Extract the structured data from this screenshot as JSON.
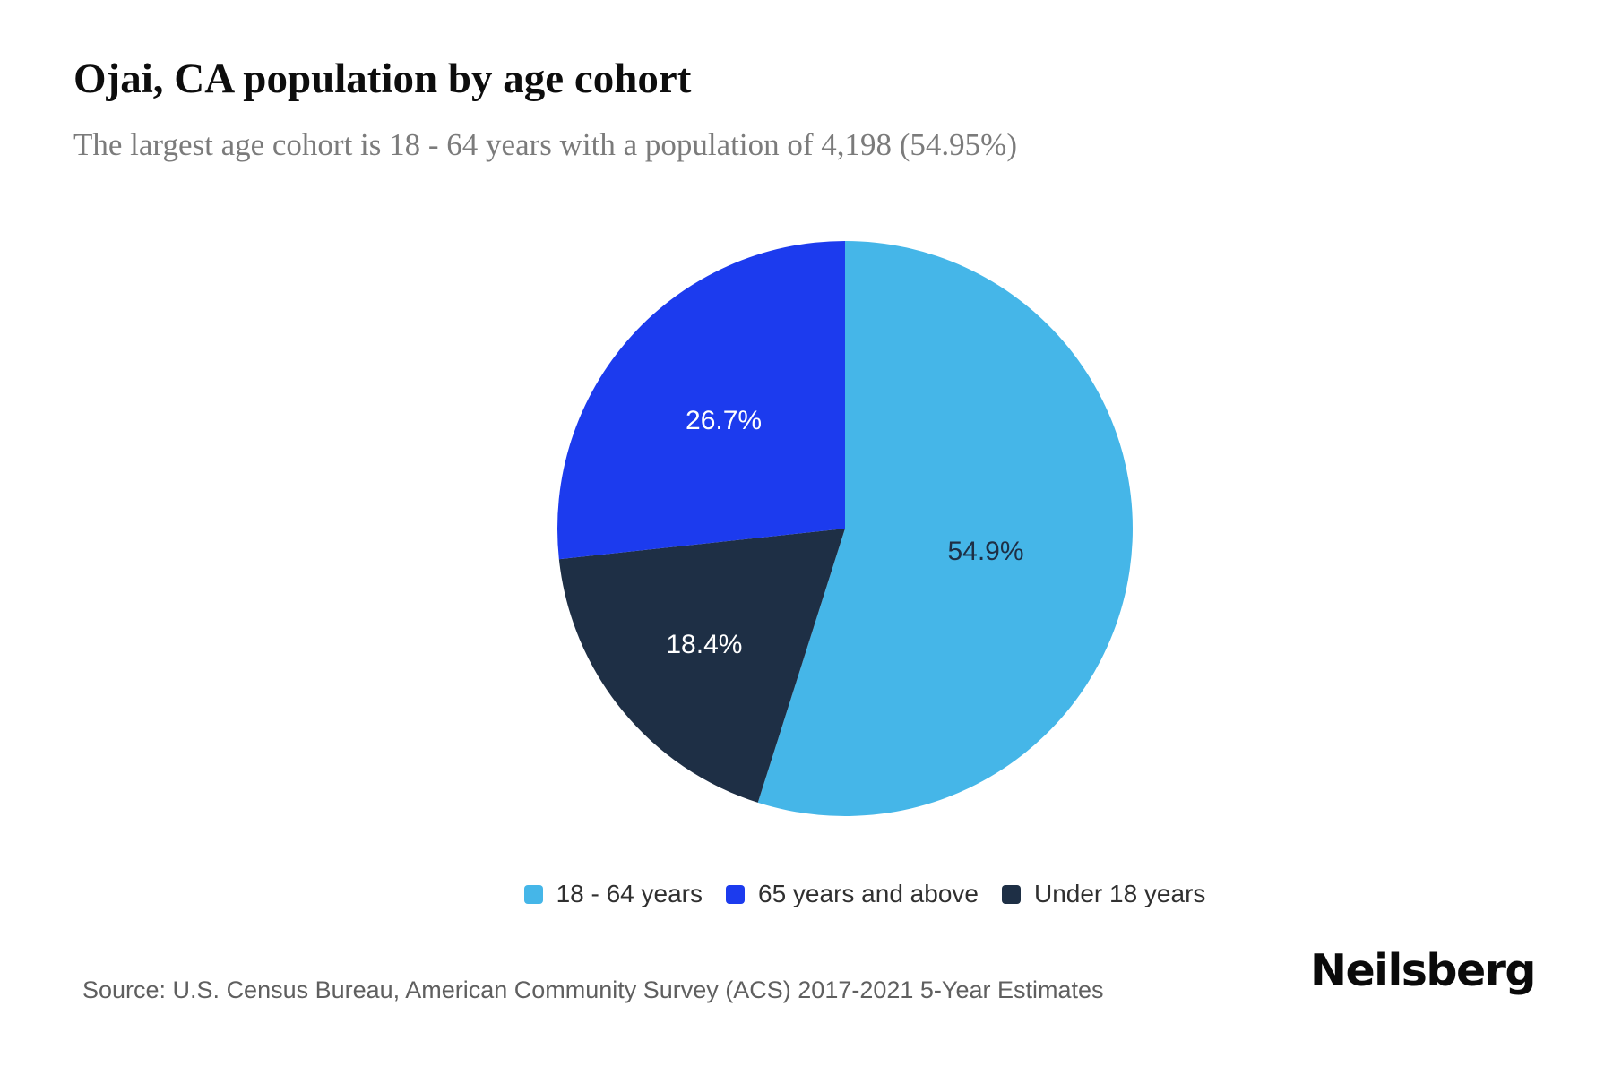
{
  "header": {
    "title": "Ojai, CA population by age cohort",
    "subtitle": "The largest age cohort is 18 - 64 years with a population of 4,198 (54.95%)"
  },
  "chart_data": {
    "type": "pie",
    "title": "Ojai, CA population by age cohort",
    "subtitle": "The largest age cohort is 18 - 64 years with a population of 4,198 (54.95%)",
    "start_angle_deg": 0,
    "direction": "clockwise",
    "legend_position": "bottom",
    "legend_order": [
      "18 - 64 years",
      "65 years and above",
      "Under 18 years"
    ],
    "slices": [
      {
        "label": "18 - 64 years",
        "pct": 54.9,
        "pct_label": "54.9%",
        "population": 4198,
        "color": "#45b6e8",
        "pct_label_color": "#1e2f45"
      },
      {
        "label": "Under 18 years",
        "pct": 18.4,
        "pct_label": "18.4%",
        "color": "#1e2f45",
        "pct_label_color": "#ffffff"
      },
      {
        "label": "65 years and above",
        "pct": 26.7,
        "pct_label": "26.7%",
        "color": "#1c3bee",
        "pct_label_color": "#ffffff"
      }
    ]
  },
  "footer": {
    "source": "Source: U.S. Census Bureau, American Community Survey (ACS) 2017-2021 5-Year Estimates",
    "brand": "Neilsberg"
  }
}
